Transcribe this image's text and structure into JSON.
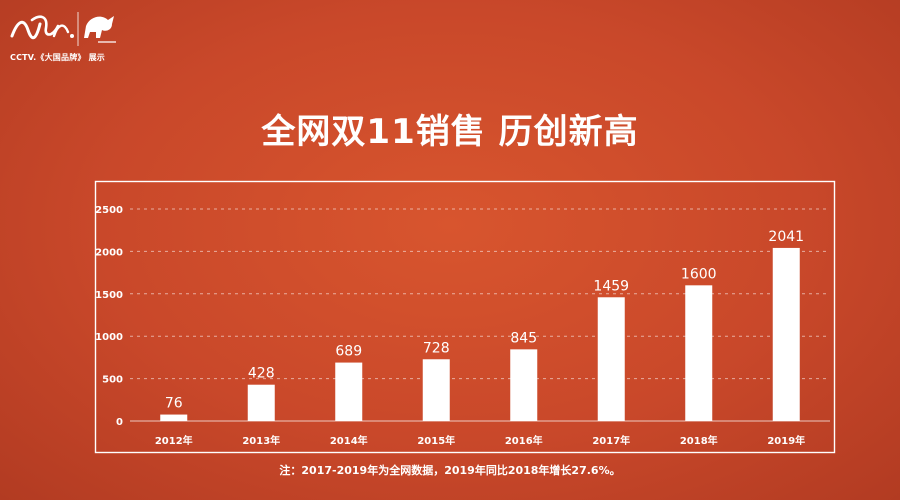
{
  "logo": {
    "caption": "CCTV.《大国品牌》 展示",
    "brand_icon": "calligraphy-logo",
    "horse_icon": "horse-logo"
  },
  "title": "全网双11销售  历创新高",
  "chart_data": {
    "type": "bar",
    "categories": [
      "2012年",
      "2013年",
      "2014年",
      "2015年",
      "2016年",
      "2017年",
      "2018年",
      "2019年"
    ],
    "values": [
      76,
      428,
      689,
      728,
      845,
      1459,
      1600,
      2041
    ],
    "ylim": [
      0,
      2500
    ],
    "yticks": [
      0,
      500,
      1000,
      1500,
      2000,
      2500
    ],
    "grid": true,
    "bar_color": "#ffffff",
    "frame_color": "#ffffff"
  },
  "note": "注：2017-2019年为全网数据，2019年同比2018年增长27.6%。"
}
